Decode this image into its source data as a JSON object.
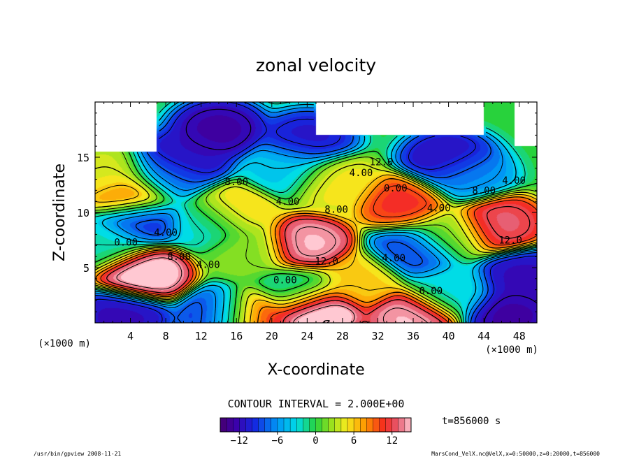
{
  "chart_data": {
    "type": "heatmap",
    "title": "zonal velocity",
    "xlabel": "X-coordinate",
    "ylabel": "Z-coordinate",
    "x_unit_label": "(×1000 m)",
    "y_unit_label": "(×1000 m)",
    "xlim": [
      0,
      50
    ],
    "ylim": [
      0,
      20
    ],
    "x_ticks": [
      4,
      8,
      12,
      16,
      20,
      24,
      28,
      32,
      36,
      40,
      44,
      48
    ],
    "x_tick_labels": [
      "4",
      "8",
      "12",
      "16",
      "20",
      "24",
      "28",
      "32",
      "36",
      "40",
      "44",
      "48"
    ],
    "y_ticks": [
      5,
      10,
      15
    ],
    "y_tick_labels": [
      "5",
      "10",
      "15"
    ],
    "contour_interval_text": "CONTOUR INTERVAL = 2.000E+00",
    "time_text": "t=856000 s",
    "colorbar": {
      "range": [
        -15,
        15
      ],
      "ticks": [
        -12,
        -6,
        0,
        6,
        12
      ],
      "tick_labels": [
        "−12",
        "−6",
        "0",
        "6",
        "12"
      ]
    },
    "contour_labels": [
      {
        "text": "0.00",
        "x": 3.5,
        "z": 7.3
      },
      {
        "text": "4.00",
        "x": 8.0,
        "z": 8.2
      },
      {
        "text": "8.00",
        "x": 9.5,
        "z": 6.0
      },
      {
        "text": "4.00",
        "x": 12.8,
        "z": 5.3
      },
      {
        "text": "0.00",
        "x": 21.5,
        "z": 3.9
      },
      {
        "text": "12.0",
        "x": 26.2,
        "z": 5.6
      },
      {
        "text": "8.00",
        "x": 27.3,
        "z": 10.3
      },
      {
        "text": "4.00",
        "x": 21.8,
        "z": 11.0
      },
      {
        "text": "8.00",
        "x": 16.0,
        "z": 12.8
      },
      {
        "text": "4.00",
        "x": 30.1,
        "z": 13.6
      },
      {
        "text": "12.0",
        "x": 32.4,
        "z": 14.6
      },
      {
        "text": "0.00",
        "x": 34.0,
        "z": 12.2
      },
      {
        "text": "4.00",
        "x": 38.9,
        "z": 10.4
      },
      {
        "text": "4.00",
        "x": 33.8,
        "z": 5.9
      },
      {
        "text": "0.00",
        "x": 38.0,
        "z": 2.9
      },
      {
        "text": "8.00",
        "x": 44.0,
        "z": 12.0
      },
      {
        "text": "4.00",
        "x": 47.4,
        "z": 12.9
      },
      {
        "text": "12.0",
        "x": 47.0,
        "z": 7.5
      }
    ],
    "features": [
      {
        "x": 5.5,
        "z": 4.5,
        "value": 16
      },
      {
        "x": 4.0,
        "z": 11.5,
        "value": 10
      },
      {
        "x": 5.0,
        "z": 9.3,
        "value": -10
      },
      {
        "x": 24.0,
        "z": 7.0,
        "value": 15
      },
      {
        "x": 35.0,
        "z": 10.8,
        "value": 11
      },
      {
        "x": 45.5,
        "z": 9.0,
        "value": 13
      },
      {
        "x": 36.0,
        "z": 6.5,
        "value": -9
      },
      {
        "x": 40.0,
        "z": 2.8,
        "value": -3
      },
      {
        "x": 25.0,
        "z": 1.2,
        "value": 17
      },
      {
        "x": 36.0,
        "z": 0.6,
        "value": 15
      },
      {
        "x": 17.5,
        "z": 0.5,
        "value": 12
      },
      {
        "x": 15.5,
        "z": 10.0,
        "value": 6
      },
      {
        "x": 13.0,
        "z": 9.0,
        "value": -3
      },
      {
        "x": 23.0,
        "z": 3.0,
        "value": -2
      },
      {
        "x": 17.5,
        "z": 6.5,
        "value": 2
      },
      {
        "x": 10.0,
        "z": 14.8,
        "value": -12
      },
      {
        "x": 14.0,
        "z": 17.5,
        "value": -13
      },
      {
        "x": 24.0,
        "z": 16.5,
        "value": -11
      },
      {
        "x": 40.0,
        "z": 14.7,
        "value": -12
      },
      {
        "x": 8.0,
        "z": 13.3,
        "value": -7
      },
      {
        "x": 42.0,
        "z": 13.3,
        "value": -6
      },
      {
        "x": 27.0,
        "z": 12.8,
        "value": 5
      },
      {
        "x": 48.5,
        "z": 4.0,
        "value": -12
      },
      {
        "x": 47.0,
        "z": 0.7,
        "value": -13
      },
      {
        "x": 3.0,
        "z": 0.6,
        "value": -12
      },
      {
        "x": 1.5,
        "z": 7.2,
        "value": -2
      },
      {
        "x": 30.0,
        "z": 4.0,
        "value": 6
      },
      {
        "x": 14.5,
        "z": 0.6,
        "value": -10
      },
      {
        "x": 2.0,
        "z": 13.2,
        "value": 4
      },
      {
        "x": 40.0,
        "z": 8.0,
        "value": 2
      },
      {
        "x": 22.0,
        "z": 14.0,
        "value": -4
      }
    ],
    "missing_regions": [
      {
        "x": [
          0,
          7
        ],
        "z": [
          15.5,
          20
        ]
      },
      {
        "x": [
          25,
          44
        ],
        "z": [
          17,
          20
        ]
      },
      {
        "x": [
          47.5,
          50
        ],
        "z": [
          16,
          20
        ]
      }
    ]
  },
  "footer": {
    "left": "/usr/bin/gpview  2008-11-21",
    "right": "MarsCond_VelX.nc@VelX,x=0:50000,z=0:20000,t=856000"
  }
}
